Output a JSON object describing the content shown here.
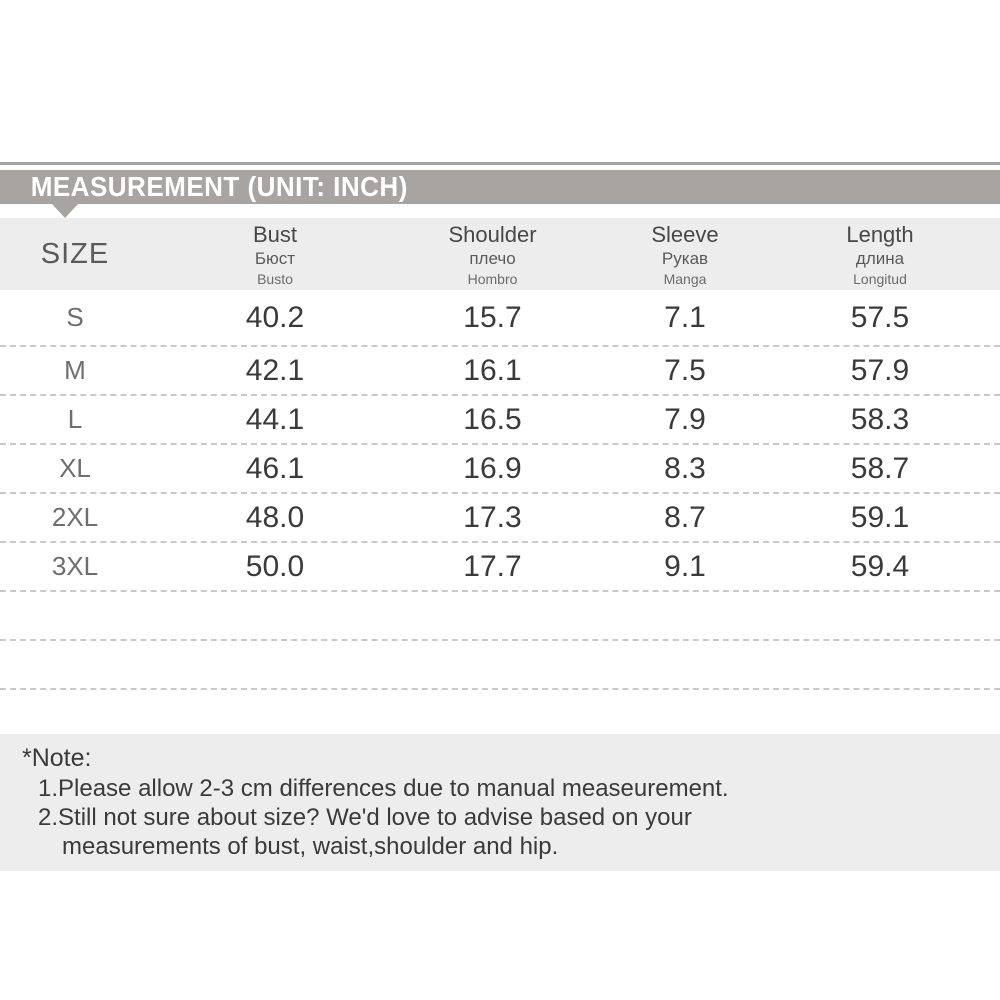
{
  "banner": {
    "title": "MEASUREMENT (UNIT: INCH)"
  },
  "table": {
    "size_header": "SIZE",
    "columns": [
      {
        "en": "Bust",
        "ru": "Бюст",
        "es": "Busto"
      },
      {
        "en": "Shoulder",
        "ru": "плечо",
        "es": "Hombro"
      },
      {
        "en": "Sleeve",
        "ru": "Рукав",
        "es": "Manga"
      },
      {
        "en": "Length",
        "ru": "длина",
        "es": "Longitud"
      }
    ],
    "rows": [
      {
        "size": "S",
        "values": [
          "40.2",
          "15.7",
          "7.1",
          "57.5"
        ]
      },
      {
        "size": "M",
        "values": [
          "42.1",
          "16.1",
          "7.5",
          "57.9"
        ]
      },
      {
        "size": "L",
        "values": [
          "44.1",
          "16.5",
          "7.9",
          "58.3"
        ]
      },
      {
        "size": "XL",
        "values": [
          "46.1",
          "16.9",
          "8.3",
          "58.7"
        ]
      },
      {
        "size": "2XL",
        "values": [
          "48.0",
          "17.3",
          "8.7",
          "59.1"
        ]
      },
      {
        "size": "3XL",
        "values": [
          "50.0",
          "17.7",
          "9.1",
          "59.4"
        ]
      }
    ]
  },
  "note": {
    "title": "*Note:",
    "lines": [
      "1.Please allow 2-3 cm differences due to manual measeurement.",
      "2.Still not sure about size? We'd love to advise based on your",
      "measurements of bust, waist,shoulder and hip."
    ]
  },
  "colors": {
    "banner_gray": "#a7a4a2",
    "panel_gray": "#ededed",
    "dash_gray": "#c9c9c9",
    "text_dark": "#3a3a3a"
  }
}
